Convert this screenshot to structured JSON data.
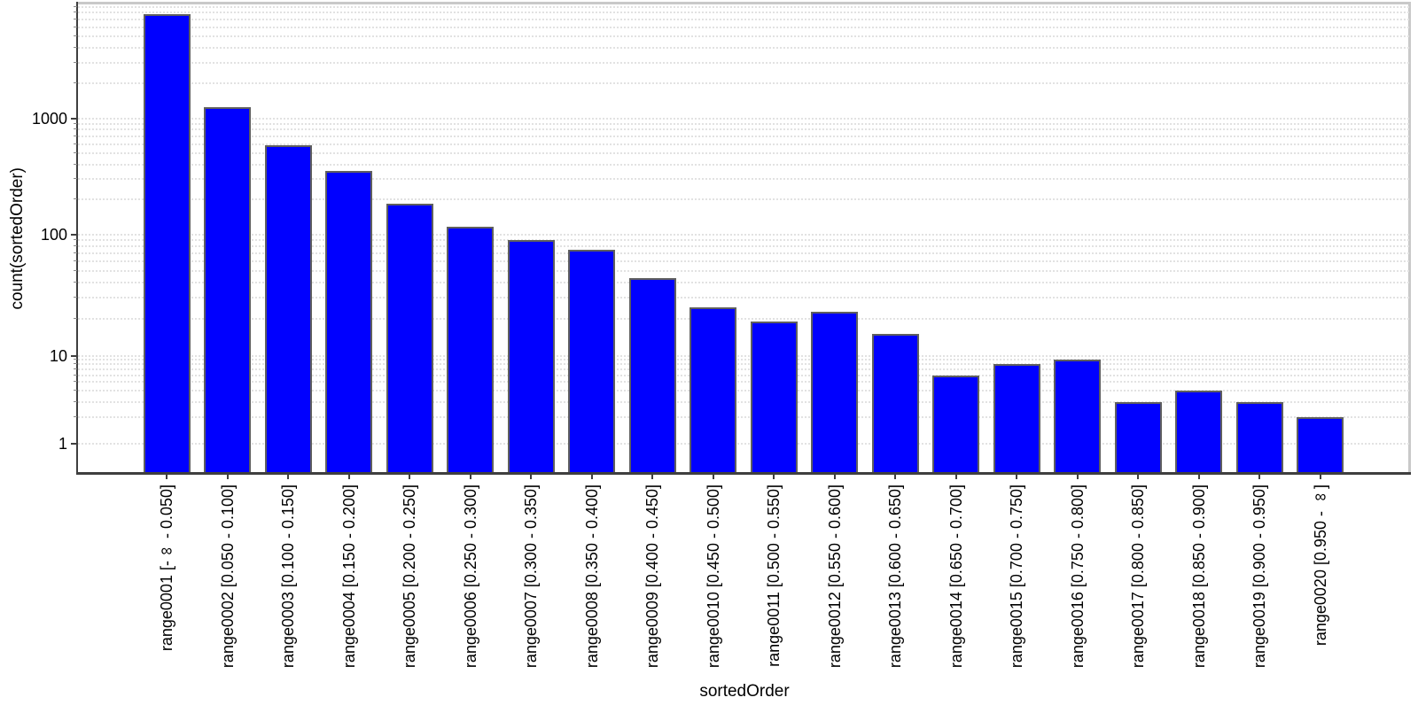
{
  "chart_data": {
    "type": "bar",
    "title": "",
    "xlabel": "sortedOrder",
    "ylabel": "count(sortedOrder)",
    "yscale": "log",
    "ylim": [
      1,
      10000
    ],
    "ytick_values": [
      1,
      10,
      100,
      1000
    ],
    "ytick_labels": [
      "1",
      "10",
      "100",
      "1000"
    ],
    "grid": "horizontal dotted, major and minor log lines",
    "legend_position": "none",
    "categories": [
      "range0001 [-∞ - 0.050]",
      "range0002 [0.050 - 0.100]",
      "range0003 [0.100 - 0.150]",
      "range0004 [0.150 - 0.200]",
      "range0005 [0.200 - 0.250]",
      "range0006 [0.250 - 0.300]",
      "range0007 [0.300 - 0.350]",
      "range0008 [0.350 - 0.400]",
      "range0009 [0.400 - 0.450]",
      "range0010 [0.450 - 0.500]",
      "range0011 [0.500 - 0.550]",
      "range0012 [0.550 - 0.600]",
      "range0013 [0.600 - 0.650]",
      "range0014 [0.650 - 0.700]",
      "range0015 [0.700 - 0.750]",
      "range0016 [0.750 - 0.800]",
      "range0017 [0.800 - 0.850]",
      "range0018 [0.850 - 0.900]",
      "range0019 [0.900 - 0.950]",
      "range0020 [0.950 - ∞]"
    ],
    "values": [
      7800,
      1250,
      590,
      350,
      185,
      118,
      90,
      75,
      44,
      25,
      19,
      23,
      15,
      6,
      8,
      9,
      3,
      4,
      3,
      2
    ],
    "bar_color": "#0000ff",
    "bar_border_color": "#5f5f5f"
  },
  "colors": {
    "background": "#ffffff",
    "axis": "#3f3f3f",
    "grid": "#e2e2e2",
    "plot_border": "#c9c9c9",
    "text": "#000000"
  }
}
